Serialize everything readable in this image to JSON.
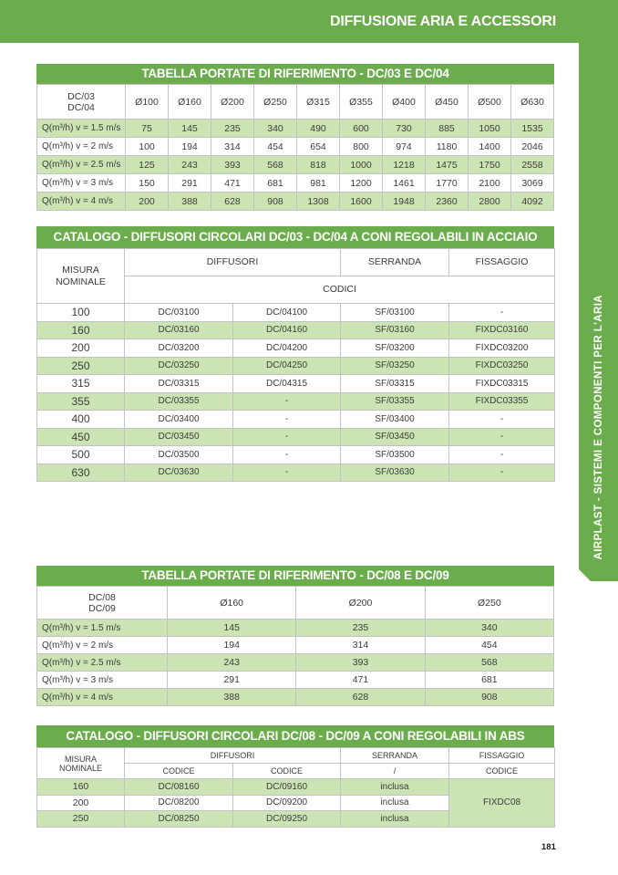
{
  "page": {
    "header_title": "DIFFUSIONE ARIA E ACCESSORI",
    "side_tab_label": "AIRPLAST - SISTEMI E COMPONENTI PER L'ARIA",
    "page_number": "181"
  },
  "colors": {
    "green": "#6BAC4D",
    "row_tint": "#CCE3B3",
    "border": "#C2C2C2",
    "text": "#3C3C3B"
  },
  "table1": {
    "title": "TABELLA PORTATE DI RIFERIMENTO - DC/03 E DC/04",
    "corner": [
      "DC/03",
      "DC/04"
    ],
    "columns": [
      "Ø100",
      "Ø160",
      "Ø200",
      "Ø250",
      "Ø315",
      "Ø355",
      "Ø400",
      "Ø450",
      "Ø500",
      "Ø630"
    ],
    "rows": [
      [
        "Q(m³/h) v = 1.5 m/s",
        "75",
        "145",
        "235",
        "340",
        "490",
        "600",
        "730",
        "885",
        "1050",
        "1535"
      ],
      [
        "Q(m³/h) v = 2 m/s",
        "100",
        "194",
        "314",
        "454",
        "654",
        "800",
        "974",
        "1180",
        "1400",
        "2046"
      ],
      [
        "Q(m³/h) v = 2.5 m/s",
        "125",
        "243",
        "393",
        "568",
        "818",
        "1000",
        "1218",
        "1475",
        "1750",
        "2558"
      ],
      [
        "Q(m³/h) v = 3 m/s",
        "150",
        "291",
        "471",
        "681",
        "981",
        "1200",
        "1461",
        "1770",
        "2100",
        "3069"
      ],
      [
        "Q(m³/h) v = 4 m/s",
        "200",
        "388",
        "628",
        "908",
        "1308",
        "1600",
        "1948",
        "2360",
        "2800",
        "4092"
      ]
    ]
  },
  "table2": {
    "title": "CATALOGO - DIFFUSORI CIRCOLARI DC/03 - DC/04 A CONI REGOLABILI IN ACCIAIO",
    "headers": {
      "misura": [
        "MISURA",
        "NOMINALE"
      ],
      "diffusori": "DIFFUSORI",
      "serranda": "SERRANDA",
      "fissaggio": "FISSAGGIO",
      "codici": "CODICI"
    },
    "rows": [
      [
        "100",
        "DC/03100",
        "DC/04100",
        "SF/03100",
        "-"
      ],
      [
        "160",
        "DC/03160",
        "DC/04160",
        "SF/03160",
        "FIXDC03160"
      ],
      [
        "200",
        "DC/03200",
        "DC/04200",
        "SF/03200",
        "FIXDC03200"
      ],
      [
        "250",
        "DC/03250",
        "DC/04250",
        "SF/03250",
        "FIXDC03250"
      ],
      [
        "315",
        "DC/03315",
        "DC/04315",
        "SF/03315",
        "FIXDC03315"
      ],
      [
        "355",
        "DC/03355",
        "-",
        "SF/03355",
        "FIXDC03355"
      ],
      [
        "400",
        "DC/03400",
        "-",
        "SF/03400",
        "-"
      ],
      [
        "450",
        "DC/03450",
        "-",
        "SF/03450",
        "-"
      ],
      [
        "500",
        "DC/03500",
        "-",
        "SF/03500",
        "-"
      ],
      [
        "630",
        "DC/03630",
        "-",
        "SF/03630",
        "-"
      ]
    ]
  },
  "table3": {
    "title": "TABELLA PORTATE DI RIFERIMENTO - DC/08 E DC/09",
    "corner": [
      "DC/08",
      "DC/09"
    ],
    "columns": [
      "Ø160",
      "Ø200",
      "Ø250"
    ],
    "rows": [
      [
        "Q(m³/h) v = 1.5 m/s",
        "145",
        "235",
        "340"
      ],
      [
        "Q(m³/h) v = 2 m/s",
        "194",
        "314",
        "454"
      ],
      [
        "Q(m³/h) v = 2.5 m/s",
        "243",
        "393",
        "568"
      ],
      [
        "Q(m³/h) v = 3 m/s",
        "291",
        "471",
        "681"
      ],
      [
        "Q(m³/h) v = 4 m/s",
        "388",
        "628",
        "908"
      ]
    ]
  },
  "table4": {
    "title": "CATALOGO - DIFFUSORI CIRCOLARI DC/08 - DC/09 A CONI REGOLABILI IN ABS",
    "headers": {
      "misura": [
        "MISURA",
        "NOMINALE"
      ],
      "diffusori": "DIFFUSORI",
      "serranda": "SERRANDA",
      "fissaggio": "FISSAGGIO",
      "codice1": "CODICE",
      "codice2": "CODICE",
      "serranda2": "/",
      "codice3": "CODICE"
    },
    "rows": [
      [
        "160",
        "DC/08160",
        "DC/09160",
        "inclusa"
      ],
      [
        "200",
        "DC/08200",
        "DC/09200",
        "inclusa"
      ],
      [
        "250",
        "DC/08250",
        "DC/09250",
        "inclusa"
      ]
    ],
    "fissaggio_code": "FIXDC08"
  }
}
